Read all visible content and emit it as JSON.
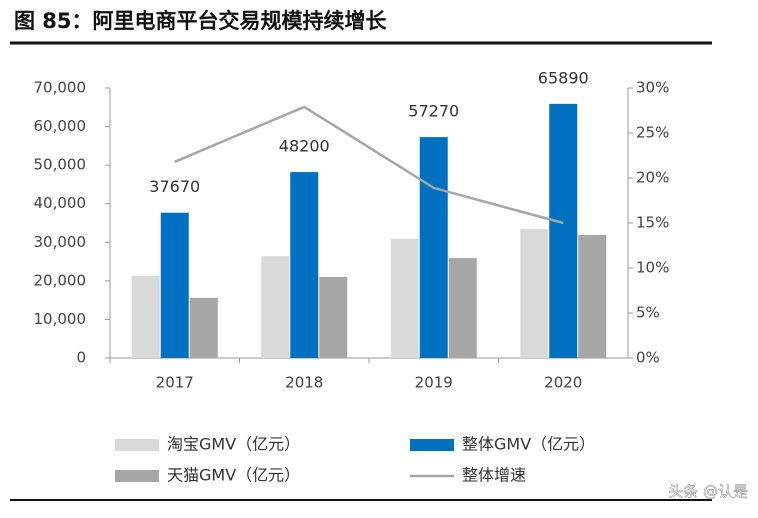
{
  "chart_data": {
    "type": "bar",
    "title": "图 85：阿里电商平台交易规模持续增长",
    "categories": [
      "2017",
      "2018",
      "2019",
      "2020"
    ],
    "series": [
      {
        "name": "淘宝GMV（亿元）",
        "color": "#d9d9d9",
        "values": [
          21300,
          26400,
          30900,
          33400
        ]
      },
      {
        "name": "整体GMV（亿元）",
        "color": "#0070c0",
        "values": [
          37670,
          48200,
          57270,
          65890
        ],
        "show_labels": true
      },
      {
        "name": "天猫GMV（亿元）",
        "color": "#a6a6a6",
        "values": [
          15600,
          21000,
          25900,
          31900
        ]
      },
      {
        "name": "整体增速",
        "color": "#a6a6a6",
        "type": "line",
        "axis": "y2",
        "values": [
          21.8,
          27.9,
          18.9,
          15.0
        ]
      }
    ],
    "ylim": [
      0,
      70000
    ],
    "yticks": [
      0,
      {
        "value": 10000,
        "label": "10,000"
      },
      {
        "value": 20000,
        "label": "20,000"
      },
      {
        "value": 30000,
        "label": "30,000"
      },
      {
        "value": 40000,
        "label": "40,000"
      },
      {
        "value": 50000,
        "label": "50,000"
      },
      {
        "value": 60000,
        "label": "60,000"
      },
      {
        "value": 70000,
        "label": "70,000"
      }
    ],
    "y2lim": [
      0,
      30
    ],
    "y2ticks": [
      {
        "value": 0,
        "label": "0%"
      },
      {
        "value": 5,
        "label": "5%"
      },
      {
        "value": 10,
        "label": "10%"
      },
      {
        "value": 15,
        "label": "15%"
      },
      {
        "value": 20,
        "label": "20%"
      },
      {
        "value": 25,
        "label": "25%"
      },
      {
        "value": 30,
        "label": "30%"
      }
    ],
    "legend": "bottom",
    "watermark": "头条 @认是"
  }
}
